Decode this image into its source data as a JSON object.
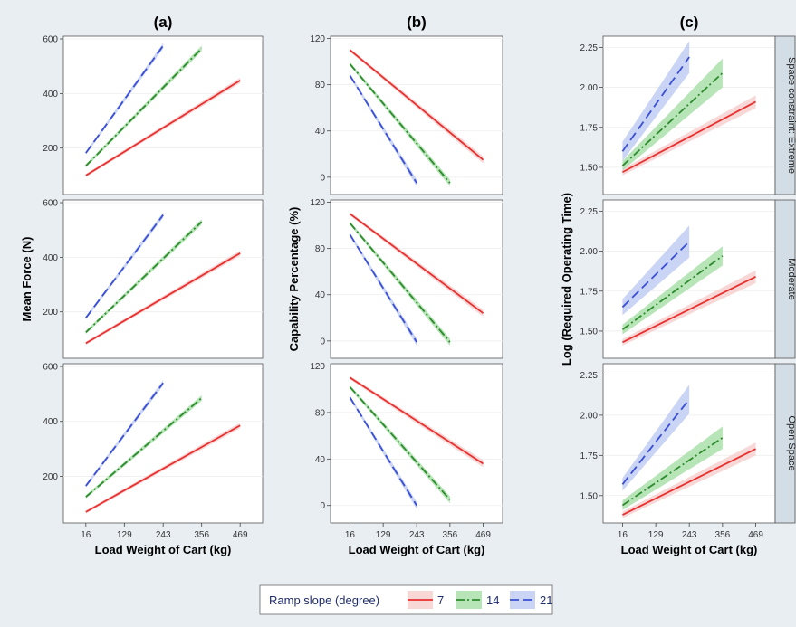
{
  "chart_data": {
    "type": "line",
    "column_titles": [
      "(a)",
      "(b)",
      "(c)"
    ],
    "row_strips": [
      "Space constraint: Extreme",
      "Moderate",
      "Open Space"
    ],
    "x_ticks": [
      16,
      129,
      243,
      356,
      469
    ],
    "x_label": "Load Weight of Cart (kg)",
    "legend": {
      "title": "Ramp slope (degree)",
      "entries": [
        {
          "label": "7",
          "color": "#e8302f",
          "dash": "solid",
          "fill": "#f6c9c9"
        },
        {
          "label": "14",
          "color": "#2e8b2e",
          "dash": "dashdot",
          "fill": "#9fdc9f"
        },
        {
          "label": "21",
          "color": "#3a4fd6",
          "dash": "dash",
          "fill": "#b8c6f2"
        }
      ]
    },
    "panels": [
      {
        "y_label": "Mean Force (N)",
        "y_ticks": [
          200,
          400,
          600
        ],
        "y_range": [
          30,
          610
        ],
        "rows": [
          {
            "series": [
              {
                "slope": "7",
                "x": [
                  16,
                  469
                ],
                "y": [
                  100,
                  448
                ],
                "band": [
                  6,
                  10
                ]
              },
              {
                "slope": "14",
                "x": [
                  16,
                  356
                ],
                "y": [
                  135,
                  565
                ],
                "band": [
                  6,
                  10
                ]
              },
              {
                "slope": "21",
                "x": [
                  16,
                  243
                ],
                "y": [
                  182,
                  575
                ],
                "band": [
                  6,
                  10
                ]
              }
            ]
          },
          {
            "series": [
              {
                "slope": "7",
                "x": [
                  16,
                  469
                ],
                "y": [
                  85,
                  415
                ],
                "band": [
                  6,
                  10
                ]
              },
              {
                "slope": "14",
                "x": [
                  16,
                  356
                ],
                "y": [
                  125,
                  530
                ],
                "band": [
                  6,
                  10
                ]
              },
              {
                "slope": "21",
                "x": [
                  16,
                  243
                ],
                "y": [
                  178,
                  555
                ],
                "band": [
                  6,
                  10
                ]
              }
            ]
          },
          {
            "series": [
              {
                "slope": "7",
                "x": [
                  16,
                  469
                ],
                "y": [
                  70,
                  385
                ],
                "band": [
                  6,
                  10
                ]
              },
              {
                "slope": "14",
                "x": [
                  16,
                  356
                ],
                "y": [
                  125,
                  485
                ],
                "band": [
                  6,
                  10
                ]
              },
              {
                "slope": "21",
                "x": [
                  16,
                  243
                ],
                "y": [
                  165,
                  540
                ],
                "band": [
                  6,
                  10
                ]
              }
            ]
          }
        ]
      },
      {
        "y_label": "Capability Percentage (%)",
        "y_ticks": [
          0,
          40,
          80,
          120
        ],
        "y_range": [
          -15,
          122
        ],
        "rows": [
          {
            "series": [
              {
                "slope": "7",
                "x": [
                  16,
                  469
                ],
                "y": [
                  110,
                  15
                ],
                "band": [
                  1.5,
                  3
                ]
              },
              {
                "slope": "14",
                "x": [
                  16,
                  356
                ],
                "y": [
                  98,
                  -5
                ],
                "band": [
                  1.5,
                  3
                ]
              },
              {
                "slope": "21",
                "x": [
                  16,
                  243
                ],
                "y": [
                  88,
                  -5
                ],
                "band": [
                  1.5,
                  3
                ]
              }
            ]
          },
          {
            "series": [
              {
                "slope": "7",
                "x": [
                  16,
                  469
                ],
                "y": [
                  110,
                  24
                ],
                "band": [
                  1.5,
                  3
                ]
              },
              {
                "slope": "14",
                "x": [
                  16,
                  356
                ],
                "y": [
                  102,
                  -1
                ],
                "band": [
                  1.5,
                  3
                ]
              },
              {
                "slope": "21",
                "x": [
                  16,
                  243
                ],
                "y": [
                  92,
                  -1
                ],
                "band": [
                  1.5,
                  3
                ]
              }
            ]
          },
          {
            "series": [
              {
                "slope": "7",
                "x": [
                  16,
                  469
                ],
                "y": [
                  110,
                  36
                ],
                "band": [
                  1.5,
                  3
                ]
              },
              {
                "slope": "14",
                "x": [
                  16,
                  356
                ],
                "y": [
                  102,
                  5
                ],
                "band": [
                  1.5,
                  3
                ]
              },
              {
                "slope": "21",
                "x": [
                  16,
                  243
                ],
                "y": [
                  93,
                  0
                ],
                "band": [
                  1.5,
                  3
                ]
              }
            ]
          }
        ]
      },
      {
        "y_label": "Log (Required Operating Time)",
        "y_ticks": [
          1.5,
          1.75,
          2.0,
          2.25
        ],
        "y_tick_labels": [
          "1.50",
          "1.75",
          "2.00",
          "2.25"
        ],
        "y_range": [
          1.33,
          2.32
        ],
        "rows": [
          {
            "series": [
              {
                "slope": "7",
                "x": [
                  16,
                  469
                ],
                "y": [
                  1.47,
                  1.91
                ],
                "band": [
                  0.02,
                  0.04
                ]
              },
              {
                "slope": "14",
                "x": [
                  16,
                  356
                ],
                "y": [
                  1.51,
                  2.09
                ],
                "band": [
                  0.03,
                  0.09
                ]
              },
              {
                "slope": "21",
                "x": [
                  16,
                  243
                ],
                "y": [
                  1.6,
                  2.19
                ],
                "band": [
                  0.06,
                  0.1
                ]
              }
            ]
          },
          {
            "series": [
              {
                "slope": "7",
                "x": [
                  16,
                  469
                ],
                "y": [
                  1.43,
                  1.84
                ],
                "band": [
                  0.02,
                  0.04
                ]
              },
              {
                "slope": "14",
                "x": [
                  16,
                  356
                ],
                "y": [
                  1.51,
                  1.97
                ],
                "band": [
                  0.03,
                  0.06
                ]
              },
              {
                "slope": "21",
                "x": [
                  16,
                  243
                ],
                "y": [
                  1.65,
                  2.06
                ],
                "band": [
                  0.05,
                  0.1
                ]
              }
            ]
          },
          {
            "series": [
              {
                "slope": "7",
                "x": [
                  16,
                  469
                ],
                "y": [
                  1.38,
                  1.79
                ],
                "band": [
                  0.02,
                  0.04
                ]
              },
              {
                "slope": "14",
                "x": [
                  16,
                  356
                ],
                "y": [
                  1.44,
                  1.86
                ],
                "band": [
                  0.03,
                  0.07
                ]
              },
              {
                "slope": "21",
                "x": [
                  16,
                  243
                ],
                "y": [
                  1.57,
                  2.1
                ],
                "band": [
                  0.04,
                  0.09
                ]
              }
            ]
          }
        ]
      }
    ]
  }
}
